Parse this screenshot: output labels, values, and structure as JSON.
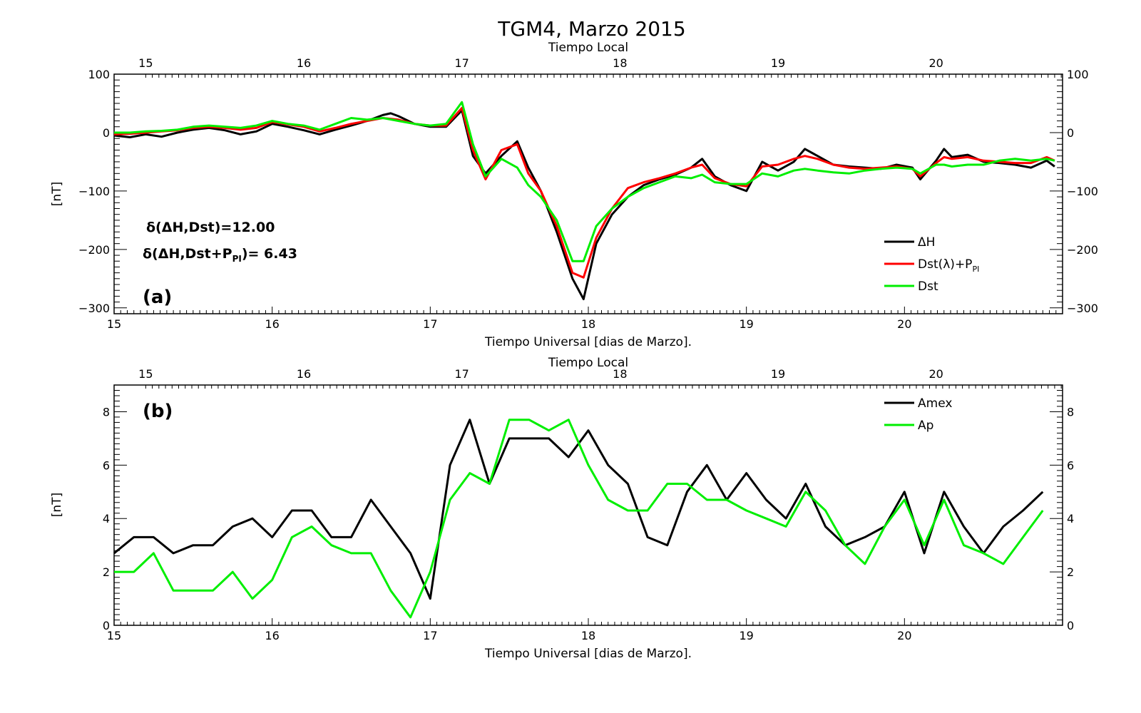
{
  "title": "TGM4, Marzo 2015",
  "chart_data": [
    {
      "type": "line",
      "panel_label": "(a)",
      "top_xlabel": "Tiempo Local",
      "xlabel": "Tiempo Universal [dias de Marzo].",
      "ylabel": "[nT]",
      "xlim": [
        15,
        21
      ],
      "ylim": [
        -310,
        100
      ],
      "x_ticks": [
        "15",
        "16",
        "17",
        "18",
        "19",
        "20"
      ],
      "top_x_ticks": [
        "15",
        "16",
        "17",
        "18",
        "19",
        "20"
      ],
      "y_ticks": [
        "100",
        "0",
        "−100",
        "−200",
        "−300"
      ],
      "legend_position": "bottom-right",
      "annotations": [
        "δ(ΔH,Dst)=12.00",
        "δ(ΔH,Dst+P",
        "PI",
        ")=  6.43"
      ],
      "series": [
        {
          "name": "ΔH",
          "color": "#000000",
          "x": [
            15,
            15.1,
            15.2,
            15.3,
            15.4,
            15.5,
            15.6,
            15.7,
            15.8,
            15.9,
            16,
            16.1,
            16.2,
            16.3,
            16.4,
            16.5,
            16.6,
            16.7,
            16.75,
            16.8,
            16.9,
            17,
            17.1,
            17.2,
            17.27,
            17.35,
            17.45,
            17.55,
            17.62,
            17.7,
            17.8,
            17.9,
            17.97,
            18.05,
            18.15,
            18.25,
            18.35,
            18.45,
            18.55,
            18.65,
            18.72,
            18.8,
            18.9,
            19,
            19.1,
            19.2,
            19.3,
            19.37,
            19.45,
            19.55,
            19.65,
            19.75,
            19.85,
            19.95,
            20.05,
            20.1,
            20.2,
            20.25,
            20.3,
            20.4,
            20.5,
            20.6,
            20.7,
            20.8,
            20.9,
            20.95
          ],
          "y": [
            -5,
            -8,
            -3,
            -7,
            0,
            5,
            8,
            4,
            -3,
            2,
            15,
            10,
            4,
            -3,
            5,
            12,
            20,
            30,
            33,
            28,
            15,
            10,
            10,
            38,
            -40,
            -70,
            -40,
            -15,
            -60,
            -100,
            -170,
            -250,
            -285,
            -190,
            -140,
            -110,
            -90,
            -80,
            -72,
            -60,
            -45,
            -75,
            -90,
            -100,
            -50,
            -65,
            -50,
            -28,
            -40,
            -55,
            -58,
            -60,
            -62,
            -55,
            -60,
            -80,
            -48,
            -28,
            -42,
            -38,
            -50,
            -52,
            -55,
            -60,
            -48,
            -58
          ]
        },
        {
          "name": "Dst(λ)+P",
          "color": "#ff0000",
          "x": [
            15,
            15.1,
            15.2,
            15.3,
            15.4,
            15.5,
            15.6,
            15.7,
            15.8,
            15.9,
            16,
            16.1,
            16.2,
            16.3,
            16.4,
            16.5,
            16.6,
            16.7,
            16.8,
            16.9,
            17,
            17.1,
            17.2,
            17.27,
            17.35,
            17.45,
            17.55,
            17.62,
            17.7,
            17.8,
            17.9,
            17.97,
            18.05,
            18.15,
            18.25,
            18.35,
            18.45,
            18.55,
            18.65,
            18.72,
            18.8,
            18.9,
            19,
            19.1,
            19.2,
            19.3,
            19.37,
            19.45,
            19.55,
            19.65,
            19.75,
            19.85,
            19.95,
            20.05,
            20.1,
            20.2,
            20.25,
            20.3,
            20.4,
            20.5,
            20.6,
            20.7,
            20.8,
            20.9,
            20.95
          ],
          "y": [
            -3,
            -2,
            0,
            2,
            4,
            8,
            10,
            8,
            5,
            8,
            18,
            14,
            10,
            2,
            8,
            15,
            20,
            25,
            22,
            15,
            12,
            12,
            42,
            -30,
            -80,
            -30,
            -20,
            -70,
            -100,
            -160,
            -240,
            -248,
            -180,
            -130,
            -95,
            -85,
            -78,
            -70,
            -60,
            -55,
            -78,
            -88,
            -92,
            -58,
            -55,
            -45,
            -40,
            -45,
            -55,
            -60,
            -62,
            -60,
            -58,
            -62,
            -75,
            -52,
            -42,
            -45,
            -42,
            -48,
            -50,
            -52,
            -52,
            -42,
            -48
          ]
        },
        {
          "name": "Dst",
          "color": "#00ee00",
          "x": [
            15,
            15.1,
            15.2,
            15.3,
            15.4,
            15.5,
            15.6,
            15.7,
            15.8,
            15.9,
            16,
            16.1,
            16.2,
            16.3,
            16.4,
            16.5,
            16.6,
            16.7,
            16.8,
            16.9,
            17,
            17.1,
            17.2,
            17.27,
            17.35,
            17.45,
            17.55,
            17.62,
            17.7,
            17.8,
            17.9,
            17.97,
            18.05,
            18.15,
            18.25,
            18.35,
            18.45,
            18.55,
            18.65,
            18.72,
            18.8,
            18.9,
            19,
            19.1,
            19.2,
            19.3,
            19.37,
            19.45,
            19.55,
            19.65,
            19.75,
            19.85,
            19.95,
            20.05,
            20.1,
            20.2,
            20.25,
            20.3,
            20.4,
            20.5,
            20.6,
            20.7,
            20.8,
            20.9,
            20.95
          ],
          "y": [
            0,
            0,
            2,
            3,
            5,
            10,
            12,
            10,
            8,
            12,
            20,
            15,
            12,
            5,
            15,
            25,
            22,
            25,
            20,
            15,
            12,
            15,
            52,
            -20,
            -75,
            -45,
            -60,
            -90,
            -110,
            -150,
            -220,
            -220,
            -160,
            -130,
            -110,
            -95,
            -85,
            -75,
            -78,
            -72,
            -85,
            -88,
            -88,
            -70,
            -75,
            -65,
            -62,
            -65,
            -68,
            -70,
            -65,
            -62,
            -60,
            -62,
            -70,
            -55,
            -55,
            -58,
            -55,
            -55,
            -48,
            -45,
            -48,
            -45,
            -48
          ]
        }
      ]
    },
    {
      "type": "line",
      "panel_label": "(b)",
      "top_xlabel": "Tiempo Local",
      "xlabel": "Tiempo Universal [dias de Marzo].",
      "ylabel": "[nT]",
      "xlim": [
        15,
        21
      ],
      "ylim": [
        0,
        9
      ],
      "x_ticks": [
        "15",
        "16",
        "17",
        "18",
        "19",
        "20"
      ],
      "top_x_ticks": [
        "15",
        "16",
        "17",
        "18",
        "19",
        "20"
      ],
      "y_ticks": [
        "0",
        "2",
        "4",
        "6",
        "8"
      ],
      "legend_position": "top-right",
      "series": [
        {
          "name": "Amex",
          "color": "#000000",
          "x": [
            15,
            15.125,
            15.25,
            15.375,
            15.5,
            15.625,
            15.75,
            15.875,
            16,
            16.125,
            16.25,
            16.375,
            16.5,
            16.625,
            16.75,
            16.875,
            17,
            17.125,
            17.25,
            17.375,
            17.5,
            17.625,
            17.75,
            17.875,
            18,
            18.125,
            18.25,
            18.375,
            18.5,
            18.625,
            18.75,
            18.875,
            19,
            19.125,
            19.25,
            19.375,
            19.5,
            19.625,
            19.75,
            19.875,
            20,
            20.125,
            20.25,
            20.375,
            20.5,
            20.625,
            20.75,
            20.875
          ],
          "y": [
            2.7,
            3.3,
            3.3,
            2.7,
            3.0,
            3.0,
            3.7,
            4.0,
            3.3,
            4.3,
            4.3,
            3.3,
            3.3,
            4.7,
            3.7,
            2.7,
            1.0,
            6.0,
            7.7,
            5.3,
            7.0,
            7.0,
            7.0,
            6.3,
            7.3,
            6.0,
            5.3,
            3.3,
            3.0,
            5.0,
            6.0,
            4.7,
            5.7,
            4.7,
            4.0,
            5.3,
            3.7,
            3.0,
            3.3,
            3.7,
            5.0,
            2.7,
            5.0,
            3.7,
            2.7,
            3.7,
            4.3,
            5.0
          ]
        },
        {
          "name": "Ap",
          "color": "#00ee00",
          "x": [
            15,
            15.125,
            15.25,
            15.375,
            15.5,
            15.625,
            15.75,
            15.875,
            16,
            16.125,
            16.25,
            16.375,
            16.5,
            16.625,
            16.75,
            16.875,
            17,
            17.125,
            17.25,
            17.375,
            17.5,
            17.625,
            17.75,
            17.875,
            18,
            18.125,
            18.25,
            18.375,
            18.5,
            18.625,
            18.75,
            18.875,
            19,
            19.125,
            19.25,
            19.375,
            19.5,
            19.625,
            19.75,
            19.875,
            20,
            20.125,
            20.25,
            20.375,
            20.5,
            20.625,
            20.75,
            20.875
          ],
          "y": [
            2.0,
            2.0,
            2.7,
            1.3,
            1.3,
            1.3,
            2.0,
            1.0,
            1.7,
            3.3,
            3.7,
            3.0,
            2.7,
            2.7,
            1.3,
            0.3,
            2.0,
            4.7,
            5.7,
            5.3,
            7.7,
            7.7,
            7.3,
            7.7,
            6.0,
            4.7,
            4.3,
            4.3,
            5.3,
            5.3,
            4.7,
            4.7,
            4.3,
            4.0,
            3.7,
            5.0,
            4.3,
            3.0,
            2.3,
            3.7,
            4.7,
            3.0,
            4.7,
            3.0,
            2.7,
            2.3,
            3.3,
            4.3
          ]
        }
      ]
    }
  ]
}
